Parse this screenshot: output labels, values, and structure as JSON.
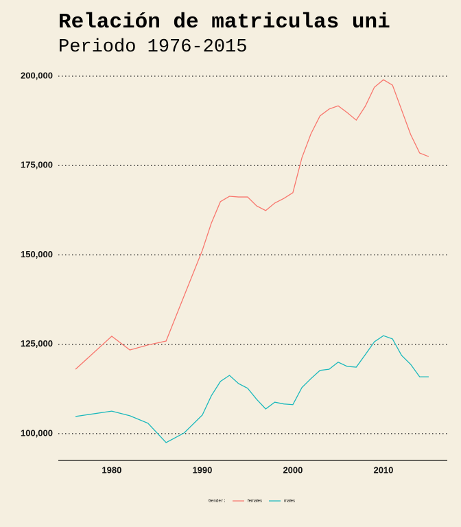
{
  "chart_data": {
    "type": "line",
    "title": "Relación de matriculas uni",
    "subtitle": "Periodo 1976-2015",
    "x": [
      1976,
      1980,
      1982,
      1984,
      1986,
      1988,
      1990,
      1991,
      1992,
      1993,
      1994,
      1995,
      1996,
      1997,
      1998,
      1999,
      2000,
      2001,
      2002,
      2003,
      2004,
      2005,
      2006,
      2007,
      2008,
      2009,
      2010,
      2011,
      2012,
      2013,
      2014,
      2015
    ],
    "series": [
      {
        "name": "females",
        "color": "#f8766d",
        "values": [
          118000,
          127250,
          123400,
          124800,
          125900,
          138600,
          151250,
          158900,
          164900,
          166400,
          166200,
          166200,
          163700,
          162400,
          164500,
          165800,
          167400,
          177200,
          183900,
          188900,
          190800,
          191700,
          189800,
          187700,
          191600,
          196900,
          199000,
          197500,
          190600,
          183700,
          178500,
          177500
        ]
      },
      {
        "name": "males",
        "color": "#19b8bc",
        "values": [
          104800,
          106300,
          105000,
          102900,
          97500,
          100200,
          105200,
          110600,
          114600,
          116300,
          114000,
          112700,
          109600,
          106900,
          108800,
          108300,
          108100,
          112900,
          115400,
          117700,
          118000,
          120000,
          118800,
          118600,
          122100,
          125700,
          127400,
          126500,
          121900,
          119400,
          115900,
          115900
        ]
      }
    ],
    "legend_title": "Gender:",
    "xlim": [
      1974.1,
      2017.05
    ],
    "xticks": [
      1980,
      1990,
      2000,
      2010
    ],
    "ylim": [
      92500,
      203070
    ],
    "yticks": [
      {
        "value": 100000,
        "label": "100,000"
      },
      {
        "value": 125000,
        "label": "125,000"
      },
      {
        "value": 150000,
        "label": "150,000"
      },
      {
        "value": 175000,
        "label": "175,000"
      },
      {
        "value": 200000,
        "label": "200,000"
      }
    ],
    "grid": true
  }
}
